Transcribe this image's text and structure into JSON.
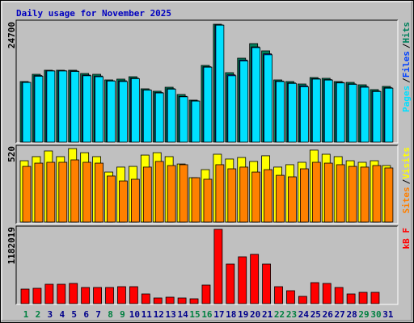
{
  "chart_data": [
    {
      "type": "bar",
      "title": "Daily usage for November 2025",
      "title_color": "#0000c0",
      "ylim": [
        0,
        24700
      ],
      "yticks": [
        24700
      ],
      "legend_separator": "/",
      "series": [
        {
          "name": "Hits",
          "color": "#00805c",
          "values": [
            12690,
            14210,
            15060,
            15060,
            15060,
            14380,
            14210,
            13030,
            13200,
            13700,
            11170,
            10660,
            11500,
            9980,
            8800,
            16070,
            24700,
            14550,
            17590,
            20640,
            19120,
            13030,
            12690,
            12180,
            13530,
            13370,
            12690,
            12520,
            12010,
            11000,
            11670
          ]
        },
        {
          "name": "Files",
          "color": "#0040ff",
          "values": [
            12550,
            13950,
            14950,
            14950,
            14900,
            14050,
            13850,
            12850,
            12850,
            13400,
            10950,
            10400,
            11200,
            9600,
            8650,
            15800,
            24550,
            14100,
            17200,
            19950,
            18500,
            12800,
            12400,
            11800,
            13300,
            13100,
            12500,
            12200,
            11650,
            10700,
            11400
          ]
        },
        {
          "name": "Pages",
          "color": "#00e0ff",
          "values": [
            12500,
            13800,
            14900,
            14900,
            14800,
            13900,
            13700,
            12800,
            12700,
            13300,
            10900,
            10300,
            11100,
            9500,
            8600,
            15700,
            24500,
            13900,
            17000,
            19800,
            18300,
            12700,
            12300,
            11600,
            13200,
            13000,
            12400,
            12100,
            11500,
            10600,
            11300
          ]
        }
      ]
    },
    {
      "type": "bar",
      "ylim": [
        0,
        520
      ],
      "yticks": [
        520
      ],
      "legend_separator": "/",
      "series": [
        {
          "name": "Visits",
          "color": "#ffff00",
          "values": [
            434,
            463,
            503,
            463,
            520,
            491,
            463,
            354,
            389,
            394,
            474,
            491,
            463,
            411,
            314,
            371,
            480,
            446,
            457,
            429,
            469,
            389,
            406,
            423,
            509,
            480,
            463,
            434,
            423,
            434,
            400
          ]
        },
        {
          "name": "Sites",
          "color": "#ff8000",
          "values": [
            394,
            417,
            423,
            423,
            440,
            423,
            417,
            326,
            291,
            303,
            389,
            429,
            400,
            406,
            314,
            303,
            406,
            377,
            389,
            354,
            371,
            331,
            320,
            377,
            423,
            417,
            406,
            394,
            389,
            400,
            383
          ]
        }
      ]
    },
    {
      "type": "bar",
      "ylim": [
        0,
        1182019
      ],
      "yticks": [
        1182019
      ],
      "categories": [
        "1",
        "2",
        "3",
        "4",
        "5",
        "6",
        "7",
        "8",
        "9",
        "10",
        "11",
        "12",
        "13",
        "14",
        "15",
        "16",
        "17",
        "18",
        "19",
        "20",
        "21",
        "22",
        "23",
        "24",
        "25",
        "26",
        "27",
        "28",
        "29",
        "30",
        "31"
      ],
      "category_colors": [
        "#008040",
        "#008040",
        "#00008b",
        "#00008b",
        "#00008b",
        "#00008b",
        "#00008b",
        "#008040",
        "#008040",
        "#00008b",
        "#00008b",
        "#00008b",
        "#00008b",
        "#00008b",
        "#008040",
        "#008040",
        "#00008b",
        "#00008b",
        "#00008b",
        "#00008b",
        "#00008b",
        "#008040",
        "#008040",
        "#00008b",
        "#00008b",
        "#00008b",
        "#00008b",
        "#00008b",
        "#008040",
        "#008040",
        "#00008b"
      ],
      "series": [
        {
          "name": "kB F",
          "color": "#ff0000",
          "values": [
            231264,
            244113,
            308353,
            308353,
            321201,
            256961,
            256961,
            256961,
            269810,
            269810,
            154176,
            89936,
            102784,
            89936,
            77088,
            295505,
            1182019,
            629553,
            745186,
            783730,
            629553,
            269810,
            205568,
            115632,
            334049,
            321201,
            256961,
            154176,
            179872,
            179872,
            0
          ]
        }
      ]
    }
  ]
}
